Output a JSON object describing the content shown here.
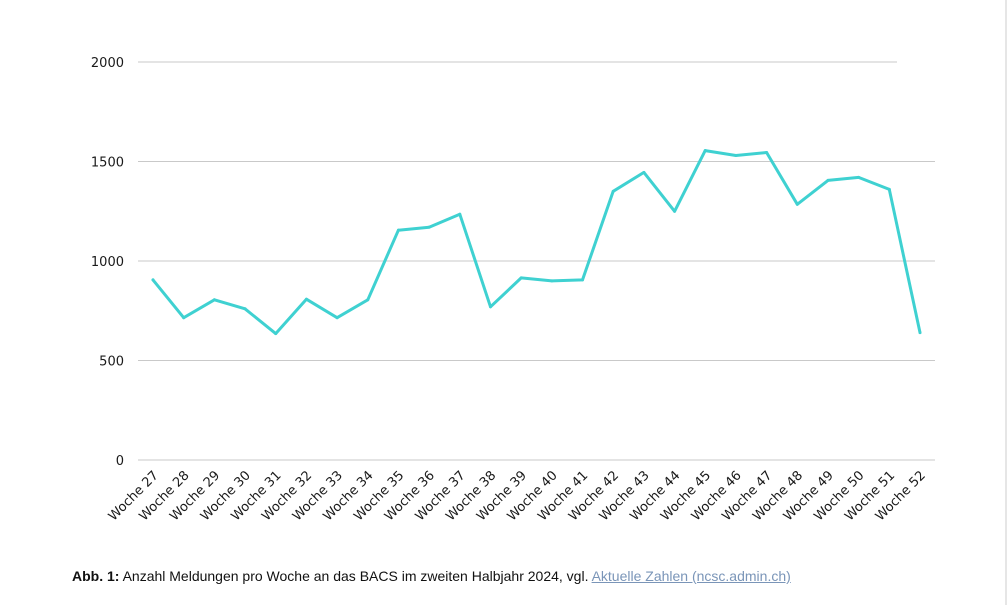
{
  "chart_data": {
    "type": "line",
    "title": "",
    "xlabel": "",
    "ylabel": "",
    "categories": [
      "Woche 27",
      "Woche 28",
      "Woche 29",
      "Woche 30",
      "Woche 31",
      "Woche 32",
      "Woche 33",
      "Woche 34",
      "Woche 35",
      "Woche 36",
      "Woche 37",
      "Woche 38",
      "Woche 39",
      "Woche 40",
      "Woche 41",
      "Woche 42",
      "Woche 43",
      "Woche 44",
      "Woche 45",
      "Woche 46",
      "Woche 47",
      "Woche 48",
      "Woche 49",
      "Woche 50",
      "Woche 51",
      "Woche 52"
    ],
    "series": [
      {
        "color": "#3fd1d1",
        "values": [
          905,
          715,
          805,
          760,
          635,
          808,
          715,
          805,
          1155,
          1170,
          1235,
          770,
          915,
          900,
          905,
          1350,
          1445,
          1250,
          1555,
          1530,
          1545,
          1285,
          1405,
          1420,
          1360,
          640
        ]
      }
    ],
    "yticks": [
      "0",
      "500",
      "1000",
      "1500",
      "2000"
    ],
    "ylim": [
      0,
      2000
    ],
    "grid": true,
    "legend": "none"
  },
  "caption": {
    "label": "Abb. 1:",
    "text": " Anzahl Meldungen pro Woche an das BACS im zweiten Halbjahr 2024, vgl. ",
    "link_text": "Aktuelle Zahlen (ncsc.admin.ch)"
  }
}
